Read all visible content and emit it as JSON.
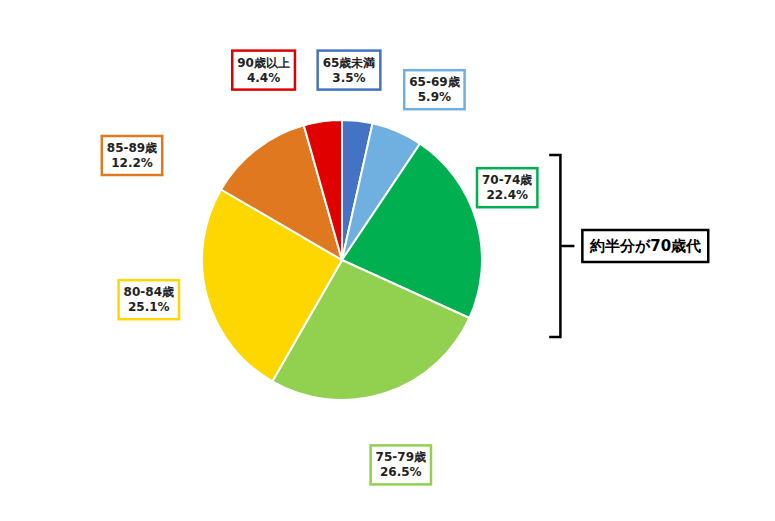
{
  "chart_data": {
    "type": "pie",
    "categories": [
      "65歳未満",
      "65-69歳",
      "70-74歳",
      "75-79歳",
      "80-84歳",
      "85-89歳",
      "90歳以上"
    ],
    "values": [
      3.5,
      5.9,
      22.4,
      26.5,
      25.1,
      12.2,
      4.4
    ],
    "value_labels": [
      "3.5%",
      "5.9%",
      "22.4%",
      "26.5%",
      "25.1%",
      "12.2%",
      "4.4%"
    ],
    "colors": [
      "#4472C4",
      "#70B0E0",
      "#00B050",
      "#92D050",
      "#FFD700",
      "#E07820",
      "#E00000"
    ],
    "data_labels": true,
    "annotations": [
      "約半分が70歳代"
    ]
  }
}
